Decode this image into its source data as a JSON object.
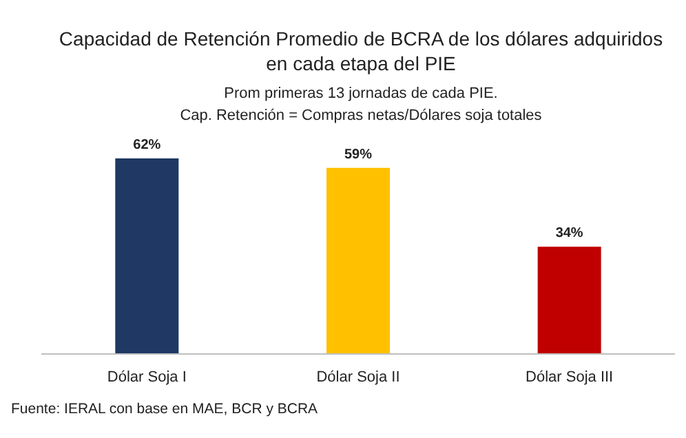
{
  "chart_data": {
    "type": "bar",
    "title": "Capacidad de Retención Promedio de BCRA de los dólares adquiridos\nen cada etapa del PIE",
    "subtitle": "Prom primeras  13 jornadas de cada PIE.\nCap. Retención = Compras netas/Dólares soja totales",
    "categories": [
      "Dólar Soja I",
      "Dólar Soja II",
      "Dólar Soja III"
    ],
    "values": [
      62,
      59,
      34
    ],
    "colors": [
      "#1f3864",
      "#ffc000",
      "#c00000"
    ],
    "value_labels": [
      "62%",
      "59%",
      "34%"
    ],
    "annotations": [
      "Fuente: IERAL con base en MAE, BCR y BCRA"
    ]
  }
}
